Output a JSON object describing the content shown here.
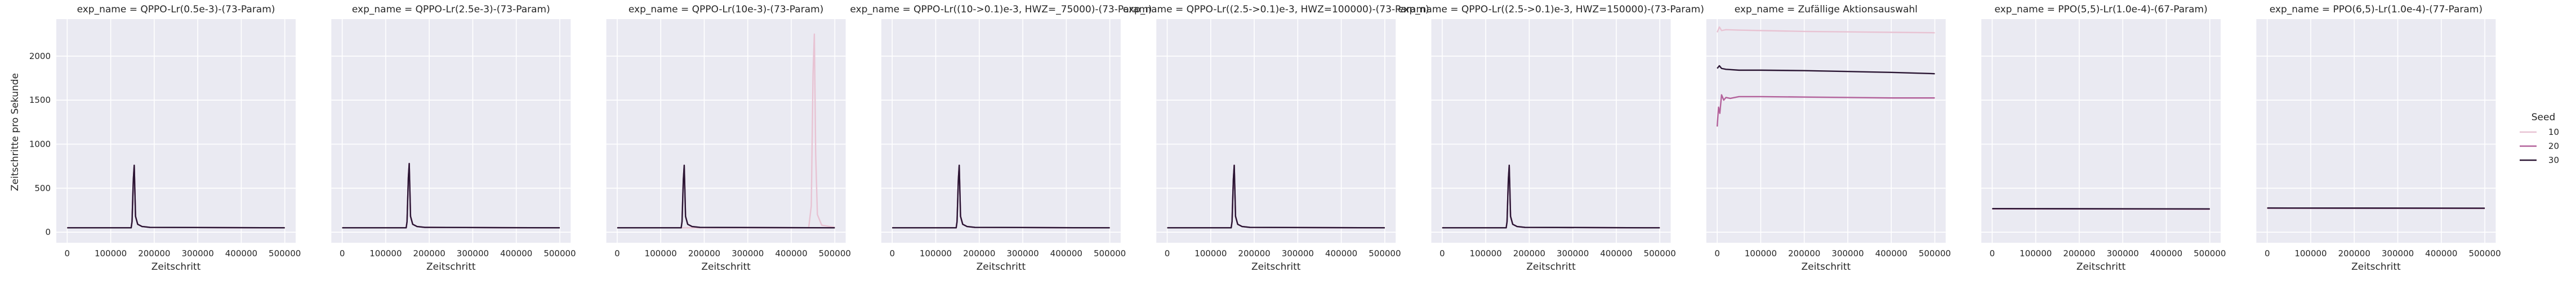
{
  "figure": {
    "xlabel": "Zeitschritt",
    "ylabel": "Zeitschritte pro Sekunde",
    "facet_prefix": "exp_name = ",
    "xlim": [
      -25000,
      525000
    ],
    "ylim": [
      -120,
      2420
    ],
    "grid": true,
    "legend": {
      "title": "Seed",
      "placement": "right",
      "entries": [
        "10",
        "20",
        "30"
      ],
      "colors": [
        "#e8c3d3",
        "#b3629b",
        "#2a1533"
      ]
    }
  },
  "chart_data": [
    {
      "type": "line",
      "title": "exp_name = QPPO-Lr(0.5e-3)-(73-Param)",
      "x_ticks": [
        0,
        100000,
        200000,
        300000,
        400000,
        500000
      ],
      "x_tick_labels": [
        "0",
        "100000",
        "200000",
        "300000",
        "400000",
        "500000"
      ],
      "y_ticks": [
        0,
        500,
        1000,
        1500,
        2000
      ],
      "y_tick_labels": [
        "0",
        "500",
        "1000",
        "1500",
        "2000"
      ],
      "series": [
        {
          "name": "10",
          "x": [
            0,
            147000,
            149000,
            152000,
            154000,
            157000,
            162000,
            172000,
            190000,
            500000
          ],
          "y": [
            50,
            50,
            120,
            600,
            760,
            180,
            90,
            65,
            55,
            50
          ]
        },
        {
          "name": "20",
          "x": [
            0,
            147000,
            149000,
            152000,
            154000,
            157000,
            162000,
            172000,
            190000,
            500000
          ],
          "y": [
            50,
            50,
            120,
            600,
            760,
            180,
            90,
            65,
            55,
            50
          ]
        },
        {
          "name": "30",
          "x": [
            0,
            147000,
            149000,
            152000,
            154000,
            157000,
            162000,
            172000,
            190000,
            500000
          ],
          "y": [
            50,
            50,
            120,
            600,
            760,
            180,
            90,
            65,
            55,
            50
          ]
        }
      ]
    },
    {
      "type": "line",
      "title": "exp_name = QPPO-Lr(2.5e-3)-(73-Param)",
      "x_ticks": [
        0,
        100000,
        200000,
        300000,
        400000,
        500000
      ],
      "x_tick_labels": [
        "0",
        "100000",
        "200000",
        "300000",
        "400000",
        "500000"
      ],
      "series": [
        {
          "name": "10",
          "x": [
            0,
            147000,
            149000,
            152000,
            154000,
            157000,
            162000,
            172000,
            190000,
            500000
          ],
          "y": [
            50,
            50,
            120,
            620,
            780,
            180,
            90,
            65,
            55,
            50
          ]
        },
        {
          "name": "20",
          "x": [
            0,
            147000,
            149000,
            152000,
            154000,
            157000,
            162000,
            172000,
            190000,
            500000
          ],
          "y": [
            50,
            50,
            120,
            620,
            780,
            180,
            90,
            65,
            55,
            50
          ]
        },
        {
          "name": "30",
          "x": [
            0,
            147000,
            149000,
            152000,
            154000,
            157000,
            162000,
            172000,
            190000,
            500000
          ],
          "y": [
            50,
            50,
            120,
            620,
            780,
            180,
            90,
            65,
            55,
            50
          ]
        }
      ]
    },
    {
      "type": "line",
      "title": "exp_name = QPPO-Lr(10e-3)-(73-Param)",
      "x_ticks": [
        0,
        100000,
        200000,
        300000,
        400000,
        500000
      ],
      "x_tick_labels": [
        "0",
        "100000",
        "200000",
        "300000",
        "400000",
        "500000"
      ],
      "series": [
        {
          "name": "10",
          "x": [
            0,
            440000,
            446000,
            450000,
            453000,
            456000,
            460000,
            470000,
            500000
          ],
          "y": [
            50,
            50,
            300,
            1800,
            2250,
            900,
            200,
            80,
            55
          ]
        },
        {
          "name": "20",
          "x": [
            0,
            147000,
            149000,
            152000,
            154000,
            157000,
            162000,
            172000,
            190000,
            500000
          ],
          "y": [
            50,
            50,
            120,
            600,
            760,
            180,
            90,
            65,
            55,
            50
          ]
        },
        {
          "name": "30",
          "x": [
            0,
            147000,
            149000,
            152000,
            154000,
            157000,
            162000,
            172000,
            190000,
            500000
          ],
          "y": [
            50,
            50,
            120,
            600,
            760,
            180,
            90,
            65,
            55,
            50
          ]
        }
      ]
    },
    {
      "type": "line",
      "title": "exp_name = QPPO-Lr((10->0.1)e-3, HWZ=_75000)-(73-Param)",
      "x_ticks": [
        0,
        100000,
        200000,
        300000,
        400000,
        500000
      ],
      "x_tick_labels": [
        "0",
        "100000",
        "200000",
        "300000",
        "400000",
        "500000"
      ],
      "series": [
        {
          "name": "10",
          "x": [
            0,
            147000,
            149000,
            152000,
            154000,
            157000,
            162000,
            172000,
            190000,
            500000
          ],
          "y": [
            50,
            50,
            120,
            600,
            760,
            180,
            90,
            65,
            55,
            50
          ]
        },
        {
          "name": "20",
          "x": [
            0,
            147000,
            149000,
            152000,
            154000,
            157000,
            162000,
            172000,
            190000,
            500000
          ],
          "y": [
            50,
            50,
            120,
            600,
            760,
            180,
            90,
            65,
            55,
            50
          ]
        },
        {
          "name": "30",
          "x": [
            0,
            147000,
            149000,
            152000,
            154000,
            157000,
            162000,
            172000,
            190000,
            500000
          ],
          "y": [
            50,
            50,
            120,
            600,
            760,
            180,
            90,
            65,
            55,
            50
          ]
        }
      ]
    },
    {
      "type": "line",
      "title": "exp_name = QPPO-Lr((2.5->0.1)e-3, HWZ=100000)-(73-Param)",
      "x_ticks": [
        0,
        100000,
        200000,
        300000,
        400000,
        500000
      ],
      "x_tick_labels": [
        "0",
        "100000",
        "200000",
        "300000",
        "400000",
        "500000"
      ],
      "series": [
        {
          "name": "10",
          "x": [
            0,
            147000,
            149000,
            152000,
            154000,
            157000,
            162000,
            172000,
            190000,
            500000
          ],
          "y": [
            50,
            50,
            120,
            600,
            760,
            180,
            90,
            65,
            55,
            50
          ]
        },
        {
          "name": "20",
          "x": [
            0,
            147000,
            149000,
            152000,
            154000,
            157000,
            162000,
            172000,
            190000,
            500000
          ],
          "y": [
            50,
            50,
            120,
            600,
            760,
            180,
            90,
            65,
            55,
            50
          ]
        },
        {
          "name": "30",
          "x": [
            0,
            147000,
            149000,
            152000,
            154000,
            157000,
            162000,
            172000,
            190000,
            500000
          ],
          "y": [
            50,
            50,
            120,
            600,
            760,
            180,
            90,
            65,
            55,
            50
          ]
        }
      ]
    },
    {
      "type": "line",
      "title": "exp_name = QPPO-Lr((2.5->0.1)e-3, HWZ=150000)-(73-Param)",
      "x_ticks": [
        0,
        100000,
        200000,
        300000,
        400000,
        500000
      ],
      "x_tick_labels": [
        "0",
        "100000",
        "200000",
        "300000",
        "400000",
        "500000"
      ],
      "series": [
        {
          "name": "10",
          "x": [
            0,
            147000,
            149000,
            152000,
            154000,
            157000,
            162000,
            172000,
            190000,
            500000
          ],
          "y": [
            50,
            50,
            120,
            600,
            760,
            180,
            90,
            65,
            55,
            50
          ]
        },
        {
          "name": "20",
          "x": [
            0,
            147000,
            149000,
            152000,
            154000,
            157000,
            162000,
            172000,
            190000,
            500000
          ],
          "y": [
            50,
            50,
            120,
            600,
            760,
            180,
            90,
            65,
            55,
            50
          ]
        },
        {
          "name": "30",
          "x": [
            0,
            147000,
            149000,
            152000,
            154000,
            157000,
            162000,
            172000,
            190000,
            500000
          ],
          "y": [
            50,
            50,
            120,
            600,
            760,
            180,
            90,
            65,
            55,
            50
          ]
        }
      ]
    },
    {
      "type": "line",
      "title": "exp_name = Zufällige Aktionsauswahl",
      "x_ticks": [
        0,
        100000,
        200000,
        300000,
        400000,
        500000
      ],
      "x_tick_labels": [
        "0",
        "100000",
        "200000",
        "300000",
        "400000",
        "500000"
      ],
      "series": [
        {
          "name": "10",
          "x": [
            0,
            5000,
            10000,
            20000,
            50000,
            100000,
            200000,
            300000,
            400000,
            500000
          ],
          "y": [
            2270,
            2330,
            2290,
            2300,
            2295,
            2290,
            2280,
            2275,
            2270,
            2265
          ]
        },
        {
          "name": "20",
          "x": [
            0,
            3000,
            6000,
            10000,
            15000,
            20000,
            30000,
            50000,
            100000,
            200000,
            300000,
            400000,
            500000
          ],
          "y": [
            1200,
            1420,
            1350,
            1560,
            1500,
            1530,
            1520,
            1540,
            1540,
            1535,
            1530,
            1525,
            1525
          ]
        },
        {
          "name": "30",
          "x": [
            0,
            5000,
            10000,
            20000,
            50000,
            100000,
            200000,
            300000,
            400000,
            500000
          ],
          "y": [
            1860,
            1890,
            1860,
            1850,
            1840,
            1840,
            1835,
            1825,
            1815,
            1800
          ]
        }
      ]
    },
    {
      "type": "line",
      "title": "exp_name = PPO(5,5)-Lr(1.0e-4)-(67-Param)",
      "x_ticks": [
        0,
        100000,
        200000,
        300000,
        400000,
        500000
      ],
      "x_tick_labels": [
        "0",
        "100000",
        "200000",
        "300000",
        "400000",
        "500000"
      ],
      "series": [
        {
          "name": "10",
          "x": [
            0,
            500000
          ],
          "y": [
            265,
            262
          ]
        },
        {
          "name": "20",
          "x": [
            0,
            500000
          ],
          "y": [
            266,
            263
          ]
        },
        {
          "name": "30",
          "x": [
            0,
            500000
          ],
          "y": [
            268,
            265
          ]
        }
      ]
    },
    {
      "type": "line",
      "title": "exp_name = PPO(6,5)-Lr(1.0e-4)-(77-Param)",
      "x_ticks": [
        0,
        100000,
        200000,
        300000,
        400000,
        500000
      ],
      "x_tick_labels": [
        "0",
        "100000",
        "200000",
        "300000",
        "400000",
        "500000"
      ],
      "series": [
        {
          "name": "10",
          "x": [
            0,
            500000
          ],
          "y": [
            272,
            270
          ]
        },
        {
          "name": "20",
          "x": [
            0,
            500000
          ],
          "y": [
            273,
            271
          ]
        },
        {
          "name": "30",
          "x": [
            0,
            500000
          ],
          "y": [
            275,
            273
          ]
        }
      ]
    }
  ]
}
